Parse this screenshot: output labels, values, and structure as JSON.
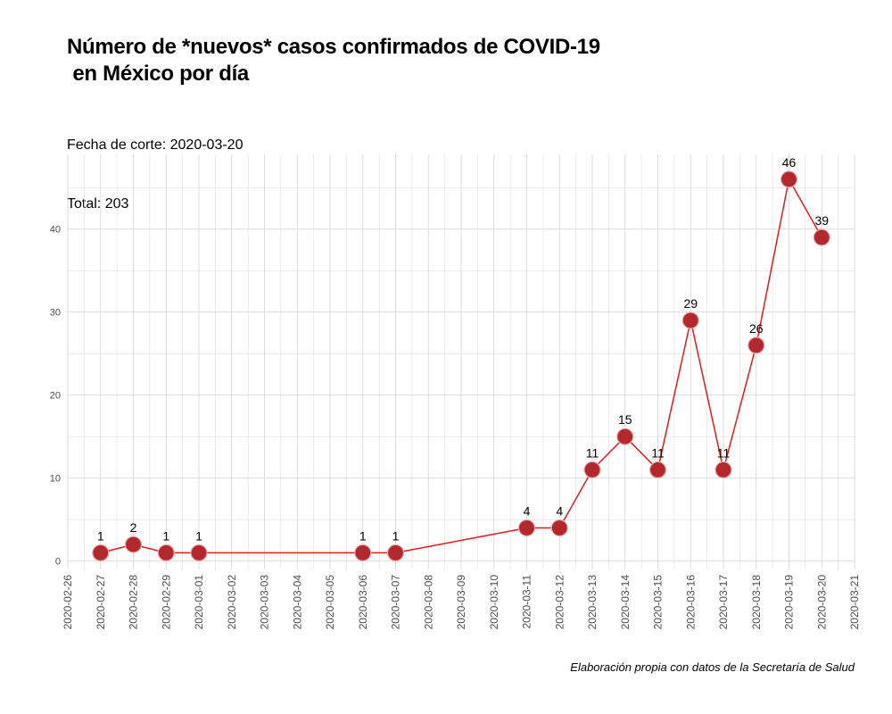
{
  "chart_data": {
    "type": "line",
    "title": "Número de *nuevos* casos confirmados de COVID-19\n en México por día",
    "subtitle_lines": [
      "Fecha de corte: 2020-03-20",
      "Total: 203"
    ],
    "caption": "Elaboración propia con datos de la Secretaría de Salud",
    "xlabel": "",
    "ylabel": "",
    "x_ticks": [
      "2020-02-26",
      "2020-02-27",
      "2020-02-28",
      "2020-02-29",
      "2020-03-01",
      "2020-03-02",
      "2020-03-03",
      "2020-03-04",
      "2020-03-05",
      "2020-03-06",
      "2020-03-07",
      "2020-03-08",
      "2020-03-09",
      "2020-03-10",
      "2020-03-11",
      "2020-03-12",
      "2020-03-13",
      "2020-03-14",
      "2020-03-15",
      "2020-03-16",
      "2020-03-17",
      "2020-03-18",
      "2020-03-19",
      "2020-03-20",
      "2020-03-21"
    ],
    "y_ticks": [
      0,
      10,
      20,
      30,
      40
    ],
    "ylim": [
      -1,
      49
    ],
    "xlim": [
      "2020-02-26",
      "2020-03-21"
    ],
    "grid": true,
    "series": [
      {
        "x": [
          "2020-02-27",
          "2020-02-28",
          "2020-02-29",
          "2020-03-01",
          "2020-03-06",
          "2020-03-07",
          "2020-03-11",
          "2020-03-12",
          "2020-03-13",
          "2020-03-14",
          "2020-03-15",
          "2020-03-16",
          "2020-03-17",
          "2020-03-18",
          "2020-03-19",
          "2020-03-20"
        ],
        "values": [
          1,
          2,
          1,
          1,
          1,
          1,
          4,
          4,
          11,
          15,
          11,
          29,
          11,
          26,
          46,
          39
        ]
      }
    ],
    "colors": {
      "line": "#e41a1c",
      "point_fill": "#b2282d",
      "point_stroke": "#e8b0b0",
      "grid": "#d9d9d9"
    }
  }
}
